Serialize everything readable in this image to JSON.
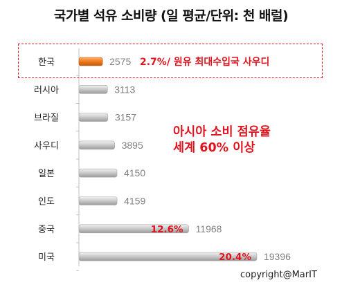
{
  "title": "국가별 석유 소비량 (일 평균/단위: 천 배럴)",
  "annotations": {
    "korea_note": "2.7%/ 원유 최대수입국 사우디",
    "asia_line1": "아시아 소비 점유율",
    "asia_line2": "세계 60% 이상"
  },
  "copyright": "copyright@MarIT",
  "colors": {
    "highlight_bar": "#ee7a1e",
    "bar": "#c8c8c8",
    "accent": "#e0141e"
  },
  "chart_data": {
    "type": "bar",
    "orientation": "horizontal",
    "title": "국가별 석유 소비량 (일 평균/단위: 천 배럴)",
    "categories": [
      "한국",
      "러시아",
      "브라질",
      "사우디",
      "일본",
      "인도",
      "중국",
      "미국"
    ],
    "values": [
      2575,
      3113,
      3157,
      3895,
      4150,
      4159,
      11968,
      19396
    ],
    "value_labels": [
      "2575",
      "3113",
      "3157",
      "3895",
      "4150",
      "4159",
      "11968",
      "19396"
    ],
    "highlighted_category": "한국",
    "share_labels": {
      "중국": "12.6%",
      "미국": "20.4%"
    },
    "xlim": [
      0,
      20000
    ],
    "grid": false,
    "legend": "none"
  }
}
